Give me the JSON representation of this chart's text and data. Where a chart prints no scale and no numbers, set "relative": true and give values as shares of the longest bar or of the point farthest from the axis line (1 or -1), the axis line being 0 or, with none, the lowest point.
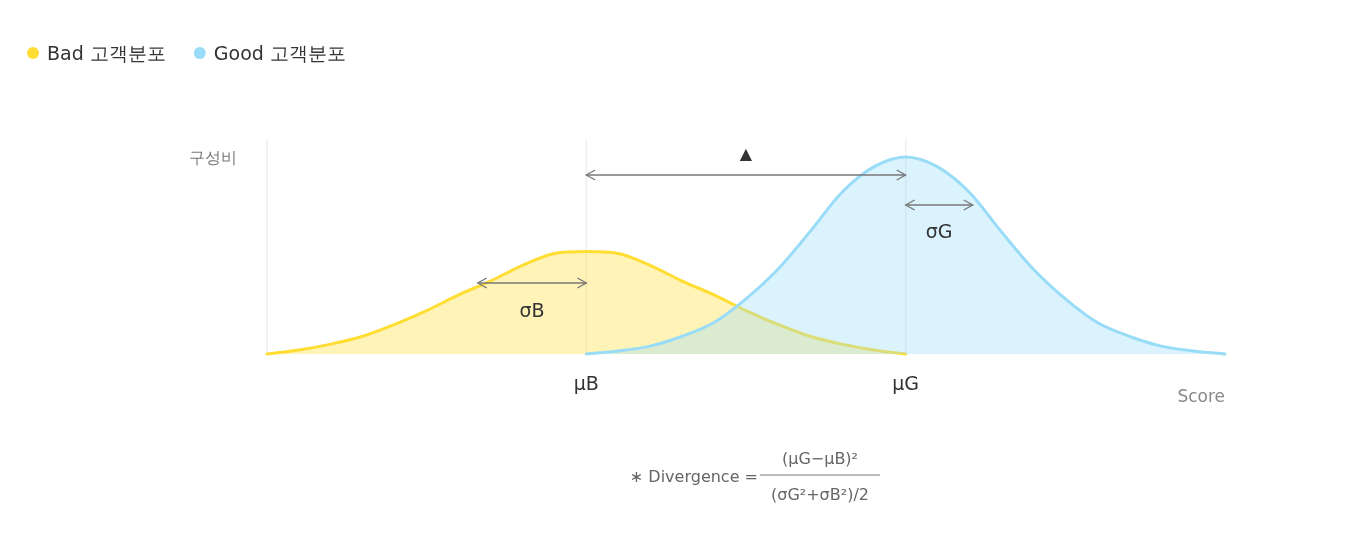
{
  "chart_data": {
    "type": "area",
    "relative": true,
    "xlabel": "Score",
    "ylabel": "구성비",
    "legend": "top left",
    "categories": [
      null,
      null,
      null,
      null,
      null,
      null,
      null,
      null,
      null,
      null,
      "μB",
      null,
      null,
      null,
      null,
      null,
      null,
      null,
      null,
      null,
      "μG",
      null,
      null,
      null,
      null,
      null,
      null,
      null,
      null,
      null,
      null
    ],
    "series": [
      {
        "name": "Bad 고객분포",
        "color": "#ffdd33",
        "values": [
          0,
          0.02,
          0.05,
          0.09,
          0.15,
          0.22,
          0.3,
          0.37,
          0.45,
          0.51,
          0.52,
          0.51,
          0.45,
          0.37,
          0.3,
          0.22,
          0.15,
          0.09,
          0.05,
          0.02,
          0,
          null,
          null,
          null,
          null,
          null,
          null,
          null,
          null,
          null,
          null
        ]
      },
      {
        "name": "Good 고객분포",
        "color": "#99dcf8",
        "values": [
          null,
          null,
          null,
          null,
          null,
          null,
          null,
          null,
          null,
          null,
          0,
          0.015,
          0.04,
          0.09,
          0.16,
          0.28,
          0.43,
          0.62,
          0.82,
          0.95,
          1,
          0.95,
          0.82,
          0.62,
          0.43,
          0.28,
          0.16,
          0.09,
          0.04,
          0.015,
          0
        ]
      }
    ],
    "grid": "x",
    "annotations": [
      "▲",
      "σG",
      "σB",
      "∗ Divergence =",
      "(μG−μB)²",
      "(σG²+σB²)/2"
    ]
  }
}
